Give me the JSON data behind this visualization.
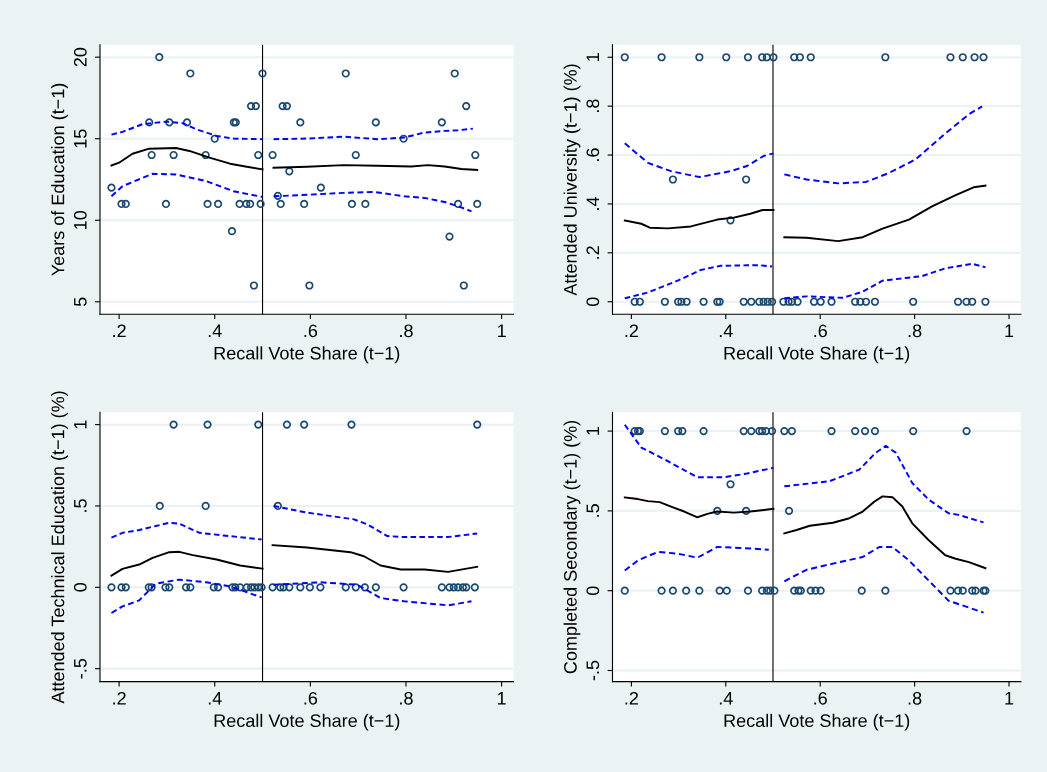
{
  "chart_data": [
    {
      "type": "scatter",
      "xlabel": "Recall Vote Share (t−1)",
      "ylabel": "Years of Education (t−1)",
      "xlim": [
        0.16,
        1.025
      ],
      "ylim": [
        4.24,
        20.76
      ],
      "xticks": [
        {
          "value": 0.2,
          "label": ".2"
        },
        {
          "value": 0.4,
          "label": ".4"
        },
        {
          "value": 0.6,
          "label": ".6"
        },
        {
          "value": 0.8,
          "label": ".8"
        },
        1
      ],
      "yticks": [
        5,
        10,
        15,
        20
      ],
      "grid": "y",
      "ref_lines": [
        {
          "axis": "x",
          "value": 0.5,
          "color": "#000000"
        }
      ],
      "series": [
        {
          "marker": "circle",
          "color": "#1a476f",
          "x": [
            0.284,
            0.349,
            0.5,
            0.674,
            0.902,
            0.476,
            0.486,
            0.542,
            0.551,
            0.926,
            0.263,
            0.305,
            0.342,
            0.44,
            0.444,
            0.579,
            0.737,
            0.875,
            0.4,
            0.795,
            0.268,
            0.314,
            0.381,
            0.491,
            0.521,
            0.695,
            0.945,
            0.556,
            0.184,
            0.622,
            0.532,
            0.205,
            0.214,
            0.298,
            0.385,
            0.407,
            0.452,
            0.466,
            0.474,
            0.496,
            0.538,
            0.587,
            0.687,
            0.715,
            0.909,
            0.949,
            0.436,
            0.891,
            0.482,
            0.598,
            0.921
          ],
          "values": [
            20,
            19,
            19,
            19,
            19,
            17,
            17,
            17,
            17,
            17,
            16,
            16,
            16,
            16,
            16,
            16,
            16,
            16,
            15,
            15,
            14,
            14,
            14,
            14,
            14,
            14,
            14,
            13,
            12,
            12,
            11.5,
            11,
            11,
            11,
            11,
            11,
            11,
            11,
            11,
            11,
            11,
            11,
            11,
            11,
            11,
            11,
            9.33,
            9,
            6,
            6,
            6
          ]
        },
        {
          "type": "line",
          "marker": "none",
          "line_style": "solid",
          "color": "#000000",
          "x": [
            0.184,
            0.2,
            0.228,
            0.263,
            0.319,
            0.347,
            0.389,
            0.432,
            0.467,
            0.5,
            0.51,
            0.523,
            0.593,
            0.67,
            0.74,
            0.811,
            0.846,
            0.881,
            0.916,
            0.949
          ],
          "values": [
            13.36,
            13.53,
            14.08,
            14.39,
            14.43,
            14.25,
            13.84,
            13.47,
            13.28,
            13.12,
            null,
            13.22,
            13.28,
            13.38,
            13.34,
            13.3,
            13.38,
            13.3,
            13.14,
            13.08
          ]
        },
        {
          "type": "line",
          "marker": "none",
          "line_style": "dashed",
          "color": "#0000ff",
          "x": [
            0.184,
            0.207,
            0.249,
            0.298,
            0.333,
            0.361,
            0.404,
            0.439,
            0.5,
            0.51,
            0.523,
            0.593,
            0.67,
            0.74,
            0.796,
            0.839,
            0.881,
            0.909,
            0.94
          ],
          "values": [
            15.25,
            15.42,
            15.89,
            16.05,
            15.95,
            15.58,
            15.17,
            15.01,
            14.97,
            null,
            14.97,
            15.01,
            15.13,
            14.97,
            15.07,
            15.38,
            15.48,
            15.52,
            15.62
          ]
        },
        {
          "type": "line",
          "marker": "none",
          "line_style": "dashed",
          "color": "#0000ff",
          "x": [
            0.184,
            0.207,
            0.27,
            0.319,
            0.382,
            0.439,
            0.5,
            0.51,
            0.523,
            0.593,
            0.67,
            0.733,
            0.796,
            0.839,
            0.881,
            0.909,
            0.937
          ],
          "values": [
            11.47,
            12.09,
            12.85,
            12.81,
            12.4,
            11.78,
            11.43,
            null,
            11.47,
            11.56,
            11.68,
            11.74,
            11.47,
            11.37,
            11.12,
            10.86,
            10.55
          ]
        }
      ]
    },
    {
      "type": "scatter",
      "xlabel": "Recall Vote Share (t−1)",
      "ylabel": "Attended University (t−1) (%)",
      "xlim": [
        0.16,
        1.025
      ],
      "ylim": [
        -0.051,
        1.051
      ],
      "xticks": [
        {
          "value": 0.2,
          "label": ".2"
        },
        {
          "value": 0.4,
          "label": ".4"
        },
        {
          "value": 0.6,
          "label": ".6"
        },
        {
          "value": 0.8,
          "label": ".8"
        },
        1
      ],
      "yticks": [
        0,
        {
          "value": 0.2,
          "label": ".2"
        },
        {
          "value": 0.4,
          "label": ".4"
        },
        {
          "value": 0.6,
          "label": ".6"
        },
        {
          "value": 0.8,
          "label": ".8"
        },
        1
      ],
      "grid": "y",
      "ref_lines": [
        {
          "axis": "x",
          "value": 0.5,
          "color": "#000000"
        }
      ],
      "series": [
        {
          "marker": "circle",
          "color": "#1a476f",
          "x": [
            0.186,
            0.264,
            0.344,
            0.401,
            0.447,
            0.477,
            0.487,
            0.501,
            0.545,
            0.557,
            0.58,
            0.738,
            0.876,
            0.902,
            0.927,
            0.946,
            0.288,
            0.443,
            0.41,
            0.207,
            0.218,
            0.271,
            0.299,
            0.306,
            0.317,
            0.353,
            0.382,
            0.387,
            0.438,
            0.454,
            0.471,
            0.48,
            0.489,
            0.498,
            0.522,
            0.533,
            0.54,
            0.552,
            0.587,
            0.601,
            0.624,
            0.674,
            0.685,
            0.697,
            0.716,
            0.797,
            0.892,
            0.91,
            0.922,
            0.95
          ],
          "values": [
            1,
            1,
            1,
            1,
            1,
            1,
            1,
            1,
            1,
            1,
            1,
            1,
            1,
            1,
            1,
            1,
            0.5,
            0.5,
            0.333,
            0,
            0,
            0,
            0,
            0,
            0,
            0,
            0,
            0,
            0,
            0,
            0,
            0,
            0,
            0,
            0,
            0,
            0,
            0,
            0,
            0,
            0,
            0,
            0,
            0,
            0,
            0,
            0,
            0,
            0,
            0
          ]
        },
        {
          "type": "line",
          "marker": "none",
          "line_style": "solid",
          "color": "#000000",
          "x": [
            0.186,
            0.221,
            0.239,
            0.277,
            0.326,
            0.382,
            0.417,
            0.452,
            0.478,
            0.501,
            0.51,
            0.524,
            0.571,
            0.638,
            0.69,
            0.732,
            0.788,
            0.837,
            0.887,
            0.925,
            0.95
          ],
          "values": [
            0.332,
            0.319,
            0.303,
            0.3,
            0.308,
            0.336,
            0.344,
            0.36,
            0.375,
            0.375,
            null,
            0.264,
            0.262,
            0.248,
            0.264,
            0.299,
            0.336,
            0.39,
            0.436,
            0.468,
            0.475
          ]
        },
        {
          "type": "line",
          "marker": "none",
          "line_style": "dashed",
          "color": "#0000ff",
          "x": [
            0.186,
            0.235,
            0.284,
            0.344,
            0.41,
            0.445,
            0.48,
            0.501,
            0.51,
            0.524,
            0.571,
            0.638,
            0.697,
            0.746,
            0.802,
            0.859,
            0.915,
            0.943
          ],
          "values": [
            0.648,
            0.568,
            0.534,
            0.51,
            0.534,
            0.555,
            0.596,
            0.607,
            null,
            0.521,
            0.5,
            0.484,
            0.49,
            0.527,
            0.582,
            0.678,
            0.767,
            0.799
          ]
        },
        {
          "type": "line",
          "marker": "none",
          "line_style": "dashed",
          "color": "#0000ff",
          "x": [
            0.186,
            0.235,
            0.298,
            0.347,
            0.389,
            0.445,
            0.473,
            0.498,
            0.51,
            0.524,
            0.571,
            0.648,
            0.69,
            0.732,
            0.781,
            0.816,
            0.866,
            0.922,
            0.95
          ],
          "values": [
            0.014,
            0.038,
            0.086,
            0.13,
            0.147,
            0.149,
            0.149,
            0.144,
            null,
            0.014,
            0.022,
            0.016,
            0.041,
            0.086,
            0.097,
            0.105,
            0.137,
            0.155,
            0.141
          ]
        }
      ]
    },
    {
      "type": "scatter",
      "xlabel": "Recall Vote Share (t−1)",
      "ylabel": "Attended Technical Education (t−1) (%)",
      "xlim": [
        0.16,
        1.025
      ],
      "ylim": [
        -0.58,
        1.076
      ],
      "xticks": [
        {
          "value": 0.2,
          "label": ".2"
        },
        {
          "value": 0.4,
          "label": ".4"
        },
        {
          "value": 0.6,
          "label": ".6"
        },
        {
          "value": 0.8,
          "label": ".8"
        },
        1
      ],
      "yticks": [
        {
          "value": -0.5,
          "label": "-.5"
        },
        0,
        {
          "value": 0.5,
          "label": ".5"
        },
        1
      ],
      "grid": "y",
      "ref_lines": [
        {
          "axis": "x",
          "value": 0.5,
          "color": "#000000"
        }
      ],
      "series": [
        {
          "marker": "circle",
          "color": "#1a476f",
          "x": [
            0.314,
            0.385,
            0.491,
            0.551,
            0.587,
            0.686,
            0.949,
            0.285,
            0.381,
            0.532,
            0.184,
            0.205,
            0.214,
            0.262,
            0.268,
            0.297,
            0.305,
            0.34,
            0.349,
            0.398,
            0.407,
            0.437,
            0.443,
            0.453,
            0.467,
            0.476,
            0.483,
            0.491,
            0.498,
            0.521,
            0.537,
            0.544,
            0.556,
            0.579,
            0.599,
            0.621,
            0.674,
            0.695,
            0.714,
            0.737,
            0.795,
            0.875,
            0.891,
            0.9,
            0.909,
            0.919,
            0.926,
            0.944
          ],
          "values": [
            1,
            1,
            1,
            1,
            1,
            1,
            1,
            0.5,
            0.5,
            0.5,
            0,
            0,
            0,
            0,
            0,
            0,
            0,
            0,
            0,
            0,
            0,
            0,
            0,
            0,
            0,
            0,
            0,
            0,
            0,
            0,
            0,
            0,
            0,
            0,
            0,
            0,
            0,
            0,
            0,
            0,
            0,
            0,
            0,
            0,
            0,
            0,
            0,
            0
          ]
        },
        {
          "type": "line",
          "marker": "none",
          "line_style": "solid",
          "color": "#000000",
          "x": [
            0.184,
            0.207,
            0.242,
            0.27,
            0.305,
            0.326,
            0.354,
            0.404,
            0.453,
            0.5,
            0.51,
            0.521,
            0.593,
            0.684,
            0.712,
            0.747,
            0.789,
            0.839,
            0.888,
            0.949
          ],
          "values": [
            0.072,
            0.113,
            0.14,
            0.181,
            0.216,
            0.218,
            0.198,
            0.171,
            0.134,
            0.115,
            null,
            0.259,
            0.245,
            0.216,
            0.191,
            0.134,
            0.109,
            0.109,
            0.095,
            0.126
          ]
        },
        {
          "type": "line",
          "marker": "none",
          "line_style": "dashed",
          "color": "#0000ff",
          "x": [
            0.184,
            0.207,
            0.242,
            0.277,
            0.305,
            0.326,
            0.368,
            0.418,
            0.498,
            0.51,
            0.523,
            0.593,
            0.691,
            0.719,
            0.761,
            0.796,
            0.888,
            0.949
          ],
          "values": [
            0.305,
            0.335,
            0.352,
            0.377,
            0.397,
            0.391,
            0.335,
            0.319,
            0.294,
            null,
            0.5,
            0.459,
            0.418,
            0.387,
            0.315,
            0.309,
            0.309,
            0.331
          ]
        },
        {
          "type": "line",
          "marker": "none",
          "line_style": "dashed",
          "color": "#0000ff",
          "x": [
            0.184,
            0.207,
            0.242,
            0.277,
            0.326,
            0.382,
            0.432,
            0.498,
            0.51,
            0.523,
            0.621,
            0.698,
            0.747,
            0.796,
            0.888,
            0.937
          ],
          "values": [
            -0.158,
            -0.117,
            -0.08,
            0.023,
            0.047,
            0.031,
            0.006,
            -0.062,
            null,
            0.016,
            0.031,
            0.016,
            -0.066,
            -0.086,
            -0.111,
            -0.086
          ]
        }
      ]
    },
    {
      "type": "scatter",
      "xlabel": "Recall Vote Share (t−1)",
      "ylabel": "Completed Secondary (t−1) (%)",
      "xlim": [
        0.16,
        1.025
      ],
      "ylim": [
        -0.57,
        1.118
      ],
      "xticks": [
        {
          "value": 0.2,
          "label": ".2"
        },
        {
          "value": 0.4,
          "label": ".4"
        },
        {
          "value": 0.6,
          "label": ".6"
        },
        {
          "value": 0.8,
          "label": ".8"
        },
        1
      ],
      "yticks": [
        {
          "value": -0.5,
          "label": "-.5"
        },
        0,
        {
          "value": 0.5,
          "label": ".5"
        },
        1
      ],
      "grid": "y",
      "ref_lines": [
        {
          "axis": "x",
          "value": 0.5,
          "color": "#000000"
        }
      ],
      "series": [
        {
          "marker": "circle",
          "color": "#1a476f",
          "x": [
            0.207,
            0.214,
            0.218,
            0.271,
            0.299,
            0.308,
            0.353,
            0.438,
            0.454,
            0.471,
            0.477,
            0.485,
            0.498,
            0.524,
            0.54,
            0.624,
            0.674,
            0.695,
            0.716,
            0.797,
            0.91,
            0.41,
            0.382,
            0.443,
            0.534,
            0.186,
            0.264,
            0.288,
            0.316,
            0.344,
            0.387,
            0.402,
            0.447,
            0.477,
            0.487,
            0.494,
            0.503,
            0.545,
            0.554,
            0.559,
            0.58,
            0.59,
            0.601,
            0.688,
            0.738,
            0.876,
            0.892,
            0.902,
            0.922,
            0.929,
            0.946,
            0.95
          ],
          "values": [
            1,
            1,
            1,
            1,
            1,
            1,
            1,
            1,
            1,
            1,
            1,
            1,
            1,
            1,
            1,
            1,
            1,
            1,
            1,
            1,
            1,
            0.667,
            0.5,
            0.5,
            0.5,
            0,
            0,
            0,
            0,
            0,
            0,
            0,
            0,
            0,
            0,
            0,
            0,
            0,
            0,
            0,
            0,
            0,
            0,
            0,
            0,
            0,
            0,
            0,
            0,
            0,
            0,
            0
          ]
        },
        {
          "type": "line",
          "marker": "none",
          "line_style": "solid",
          "color": "#000000",
          "x": [
            0.186,
            0.214,
            0.235,
            0.26,
            0.284,
            0.312,
            0.34,
            0.361,
            0.382,
            0.417,
            0.452,
            0.501,
            0.51,
            0.524,
            0.55,
            0.578,
            0.627,
            0.662,
            0.69,
            0.715,
            0.732,
            0.753,
            0.774,
            0.795,
            0.83,
            0.865,
            0.887,
            0.915,
            0.95
          ],
          "values": [
            0.584,
            0.574,
            0.561,
            0.555,
            0.527,
            0.496,
            0.46,
            0.481,
            0.496,
            0.489,
            0.496,
            0.513,
            null,
            0.359,
            0.38,
            0.407,
            0.426,
            0.454,
            0.496,
            0.559,
            0.591,
            0.586,
            0.527,
            0.422,
            0.316,
            0.222,
            0.2,
            0.179,
            0.141
          ]
        },
        {
          "type": "line",
          "marker": "none",
          "line_style": "dashed",
          "color": "#0000ff",
          "x": [
            0.186,
            0.221,
            0.27,
            0.312,
            0.34,
            0.396,
            0.445,
            0.501,
            0.51,
            0.524,
            0.62,
            0.683,
            0.718,
            0.739,
            0.76,
            0.795,
            0.83,
            0.872,
            0.893,
            0.946
          ],
          "values": [
            1.04,
            0.897,
            0.823,
            0.755,
            0.711,
            0.711,
            0.734,
            0.77,
            null,
            0.654,
            0.686,
            0.759,
            0.865,
            0.907,
            0.865,
            0.675,
            0.57,
            0.485,
            0.475,
            0.428
          ]
        },
        {
          "type": "line",
          "marker": "none",
          "line_style": "dashed",
          "color": "#0000ff",
          "x": [
            0.186,
            0.214,
            0.256,
            0.298,
            0.34,
            0.382,
            0.431,
            0.491,
            0.51,
            0.524,
            0.571,
            0.62,
            0.69,
            0.725,
            0.753,
            0.788,
            0.83,
            0.872,
            0.946
          ],
          "values": [
            0.127,
            0.19,
            0.243,
            0.232,
            0.207,
            0.274,
            0.268,
            0.257,
            null,
            0.059,
            0.131,
            0.165,
            0.211,
            0.274,
            0.274,
            0.19,
            0.063,
            -0.063,
            -0.137
          ]
        }
      ]
    }
  ]
}
